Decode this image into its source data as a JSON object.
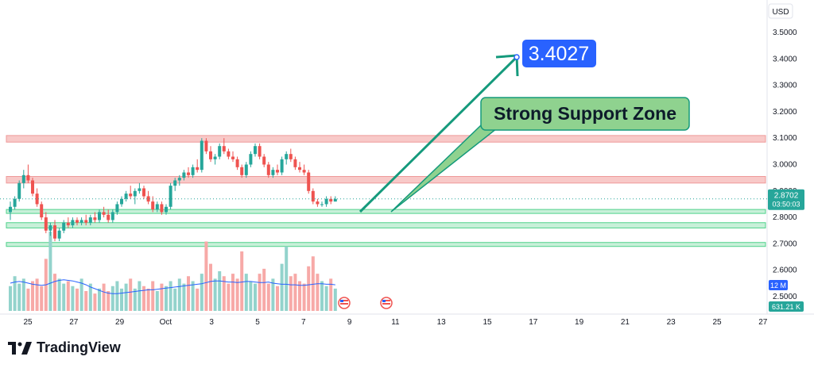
{
  "currency": "USD",
  "brand": {
    "name": "TradingView"
  },
  "annotations": {
    "target_label": "3.4027",
    "zone_label": "Strong Support Zone"
  },
  "price_badge": {
    "price": "2.8702",
    "countdown": "03:50:03"
  },
  "volume_badges": {
    "ma": "12 M",
    "last": "631.21 K"
  },
  "colors": {
    "up": "#26a69a",
    "down": "#ef5350",
    "resistance_fill": "#f8c9c8",
    "resistance_line": "#ef9a9a",
    "support_fill": "#c8f0d9",
    "support_line": "#4fd18b",
    "arrow": "#159a7c",
    "target_bg": "#2962ff",
    "callout_bg": "#8fd28f",
    "volume_ma": "#2962ff"
  },
  "chart_data": {
    "type": "candlestick",
    "ylim": [
      2.45,
      3.55
    ],
    "y_ticks": [
      "3.5000",
      "3.4000",
      "3.3000",
      "3.2000",
      "3.1000",
      "3.0000",
      "2.9000",
      "2.8000",
      "2.7000",
      "2.6000",
      "2.5000"
    ],
    "x_ticks": [
      "25",
      "27",
      "29",
      "Oct",
      "3",
      "5",
      "7",
      "9",
      "11",
      "13",
      "15",
      "17",
      "19",
      "21",
      "23",
      "25",
      "27"
    ],
    "candles": [
      {
        "o": 2.82,
        "h": 2.86,
        "l": 2.79,
        "c": 2.84
      },
      {
        "o": 2.84,
        "h": 2.88,
        "l": 2.83,
        "c": 2.87
      },
      {
        "o": 2.87,
        "h": 2.94,
        "l": 2.86,
        "c": 2.93
      },
      {
        "o": 2.93,
        "h": 2.98,
        "l": 2.91,
        "c": 2.96
      },
      {
        "o": 2.96,
        "h": 3.0,
        "l": 2.93,
        "c": 2.94
      },
      {
        "o": 2.94,
        "h": 2.95,
        "l": 2.88,
        "c": 2.89
      },
      {
        "o": 2.89,
        "h": 2.91,
        "l": 2.84,
        "c": 2.85
      },
      {
        "o": 2.85,
        "h": 2.86,
        "l": 2.79,
        "c": 2.8
      },
      {
        "o": 2.8,
        "h": 2.82,
        "l": 2.74,
        "c": 2.75
      },
      {
        "o": 2.75,
        "h": 2.78,
        "l": 2.73,
        "c": 2.77
      },
      {
        "o": 2.77,
        "h": 2.79,
        "l": 2.71,
        "c": 2.72
      },
      {
        "o": 2.72,
        "h": 2.76,
        "l": 2.71,
        "c": 2.75
      },
      {
        "o": 2.75,
        "h": 2.79,
        "l": 2.74,
        "c": 2.78
      },
      {
        "o": 2.78,
        "h": 2.8,
        "l": 2.76,
        "c": 2.77
      },
      {
        "o": 2.77,
        "h": 2.8,
        "l": 2.76,
        "c": 2.79
      },
      {
        "o": 2.79,
        "h": 2.8,
        "l": 2.77,
        "c": 2.78
      },
      {
        "o": 2.78,
        "h": 2.8,
        "l": 2.77,
        "c": 2.79
      },
      {
        "o": 2.79,
        "h": 2.81,
        "l": 2.77,
        "c": 2.78
      },
      {
        "o": 2.78,
        "h": 2.81,
        "l": 2.77,
        "c": 2.8
      },
      {
        "o": 2.8,
        "h": 2.82,
        "l": 2.78,
        "c": 2.79
      },
      {
        "o": 2.79,
        "h": 2.83,
        "l": 2.78,
        "c": 2.82
      },
      {
        "o": 2.82,
        "h": 2.84,
        "l": 2.8,
        "c": 2.81
      },
      {
        "o": 2.81,
        "h": 2.83,
        "l": 2.78,
        "c": 2.79
      },
      {
        "o": 2.79,
        "h": 2.83,
        "l": 2.78,
        "c": 2.82
      },
      {
        "o": 2.82,
        "h": 2.86,
        "l": 2.81,
        "c": 2.85
      },
      {
        "o": 2.85,
        "h": 2.88,
        "l": 2.84,
        "c": 2.87
      },
      {
        "o": 2.87,
        "h": 2.9,
        "l": 2.86,
        "c": 2.89
      },
      {
        "o": 2.89,
        "h": 2.92,
        "l": 2.87,
        "c": 2.88
      },
      {
        "o": 2.88,
        "h": 2.91,
        "l": 2.85,
        "c": 2.9
      },
      {
        "o": 2.9,
        "h": 2.93,
        "l": 2.89,
        "c": 2.91
      },
      {
        "o": 2.91,
        "h": 2.92,
        "l": 2.87,
        "c": 2.88
      },
      {
        "o": 2.88,
        "h": 2.9,
        "l": 2.85,
        "c": 2.86
      },
      {
        "o": 2.86,
        "h": 2.88,
        "l": 2.82,
        "c": 2.83
      },
      {
        "o": 2.83,
        "h": 2.86,
        "l": 2.82,
        "c": 2.85
      },
      {
        "o": 2.85,
        "h": 2.86,
        "l": 2.81,
        "c": 2.82
      },
      {
        "o": 2.82,
        "h": 2.85,
        "l": 2.81,
        "c": 2.84
      },
      {
        "o": 2.84,
        "h": 2.93,
        "l": 2.83,
        "c": 2.92
      },
      {
        "o": 2.92,
        "h": 2.95,
        "l": 2.9,
        "c": 2.94
      },
      {
        "o": 2.94,
        "h": 2.96,
        "l": 2.92,
        "c": 2.95
      },
      {
        "o": 2.95,
        "h": 2.98,
        "l": 2.94,
        "c": 2.97
      },
      {
        "o": 2.97,
        "h": 2.99,
        "l": 2.95,
        "c": 2.96
      },
      {
        "o": 2.96,
        "h": 3.0,
        "l": 2.95,
        "c": 2.99
      },
      {
        "o": 2.99,
        "h": 3.02,
        "l": 2.97,
        "c": 2.98
      },
      {
        "o": 2.98,
        "h": 3.1,
        "l": 2.97,
        "c": 3.09
      },
      {
        "o": 3.09,
        "h": 3.1,
        "l": 3.04,
        "c": 3.05
      },
      {
        "o": 3.05,
        "h": 3.07,
        "l": 3.01,
        "c": 3.02
      },
      {
        "o": 3.02,
        "h": 3.04,
        "l": 3.0,
        "c": 3.03
      },
      {
        "o": 3.03,
        "h": 3.08,
        "l": 3.02,
        "c": 3.07
      },
      {
        "o": 3.07,
        "h": 3.1,
        "l": 3.04,
        "c": 3.05
      },
      {
        "o": 3.05,
        "h": 3.06,
        "l": 3.02,
        "c": 3.03
      },
      {
        "o": 3.03,
        "h": 3.05,
        "l": 3.01,
        "c": 3.02
      },
      {
        "o": 3.02,
        "h": 3.03,
        "l": 2.98,
        "c": 2.99
      },
      {
        "o": 2.99,
        "h": 3.0,
        "l": 2.95,
        "c": 2.96
      },
      {
        "o": 2.96,
        "h": 3.01,
        "l": 2.95,
        "c": 3.0
      },
      {
        "o": 3.0,
        "h": 3.05,
        "l": 2.99,
        "c": 3.04
      },
      {
        "o": 3.04,
        "h": 3.08,
        "l": 3.03,
        "c": 3.07
      },
      {
        "o": 3.07,
        "h": 3.08,
        "l": 3.02,
        "c": 3.03
      },
      {
        "o": 3.03,
        "h": 3.04,
        "l": 2.99,
        "c": 3.0
      },
      {
        "o": 3.0,
        "h": 3.01,
        "l": 2.95,
        "c": 2.96
      },
      {
        "o": 2.96,
        "h": 2.99,
        "l": 2.95,
        "c": 2.98
      },
      {
        "o": 2.98,
        "h": 3.0,
        "l": 2.96,
        "c": 2.97
      },
      {
        "o": 2.97,
        "h": 3.03,
        "l": 2.96,
        "c": 3.02
      },
      {
        "o": 3.02,
        "h": 3.05,
        "l": 3.0,
        "c": 3.04
      },
      {
        "o": 3.04,
        "h": 3.06,
        "l": 3.01,
        "c": 3.02
      },
      {
        "o": 3.02,
        "h": 3.03,
        "l": 2.98,
        "c": 2.99
      },
      {
        "o": 2.99,
        "h": 3.01,
        "l": 2.97,
        "c": 2.98
      },
      {
        "o": 2.98,
        "h": 3.0,
        "l": 2.96,
        "c": 2.97
      },
      {
        "o": 2.97,
        "h": 2.98,
        "l": 2.89,
        "c": 2.9
      },
      {
        "o": 2.9,
        "h": 2.91,
        "l": 2.85,
        "c": 2.86
      },
      {
        "o": 2.86,
        "h": 2.87,
        "l": 2.84,
        "c": 2.85
      },
      {
        "o": 2.85,
        "h": 2.86,
        "l": 2.84,
        "c": 2.85
      },
      {
        "o": 2.85,
        "h": 2.88,
        "l": 2.84,
        "c": 2.87
      },
      {
        "o": 2.87,
        "h": 2.88,
        "l": 2.85,
        "c": 2.86
      },
      {
        "o": 2.86,
        "h": 2.88,
        "l": 2.86,
        "c": 2.87
      }
    ],
    "volume": [
      20,
      28,
      22,
      26,
      18,
      24,
      26,
      20,
      42,
      64,
      30,
      26,
      22,
      24,
      20,
      18,
      26,
      16,
      22,
      14,
      18,
      22,
      16,
      20,
      24,
      18,
      22,
      26,
      18,
      24,
      20,
      18,
      24,
      16,
      22,
      20,
      24,
      18,
      26,
      22,
      28,
      24,
      18,
      30,
      56,
      38,
      26,
      32,
      28,
      22,
      30,
      26,
      48,
      30,
      24,
      22,
      30,
      34,
      22,
      26,
      20,
      38,
      52,
      28,
      30,
      24,
      22,
      36,
      44,
      30,
      24,
      20,
      26,
      18
    ],
    "volume_ma": [
      0.5,
      0.52,
      0.53,
      0.52,
      0.5,
      0.48,
      0.47,
      0.46,
      0.47,
      0.5,
      0.53,
      0.55,
      0.56,
      0.55,
      0.54,
      0.52,
      0.5,
      0.47,
      0.43,
      0.4,
      0.37,
      0.34,
      0.32,
      0.31,
      0.31,
      0.32,
      0.33,
      0.34,
      0.35,
      0.36,
      0.37,
      0.38,
      0.38,
      0.39,
      0.4,
      0.41,
      0.42,
      0.43,
      0.44,
      0.45,
      0.46,
      0.47,
      0.48,
      0.49,
      0.51,
      0.53,
      0.54,
      0.54,
      0.53,
      0.52,
      0.52,
      0.51,
      0.52,
      0.53,
      0.53,
      0.52,
      0.51,
      0.51,
      0.52,
      0.5,
      0.49,
      0.48,
      0.48,
      0.47,
      0.47,
      0.46,
      0.46,
      0.47,
      0.48,
      0.49,
      0.49,
      0.48,
      0.48,
      0.47
    ],
    "resistance_zones": [
      [
        3.085,
        3.11
      ],
      [
        2.93,
        2.955
      ]
    ],
    "support_zones": [
      [
        2.815,
        2.83
      ],
      [
        2.76,
        2.78
      ],
      [
        2.69,
        2.705
      ]
    ],
    "current_price": 2.8702
  }
}
